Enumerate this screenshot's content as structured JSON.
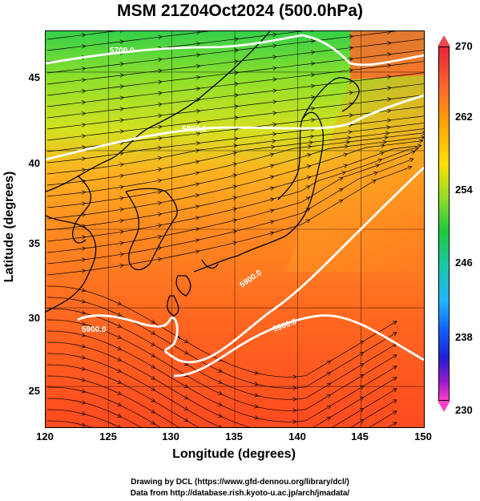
{
  "title": "MSM 21Z04Oct2024 (500.0hPa)",
  "axes": {
    "xlabel": "Longitude (degrees)",
    "ylabel": "Latitude  (degrees)",
    "xticks": [
      "120",
      "125",
      "130",
      "135",
      "140",
      "145",
      "150"
    ],
    "yticks": [
      "45",
      "40",
      "35",
      "30",
      "25"
    ]
  },
  "colorbar": {
    "ticks": [
      "270",
      "262",
      "254",
      "246",
      "238",
      "230"
    ],
    "colors": [
      "#e8253a",
      "#ffa500",
      "#ffe000",
      "#1ec83a",
      "#21b4ff",
      "#2020d0",
      "#ff40c8"
    ]
  },
  "contours": {
    "labels": [
      "5700.0",
      "5800.0",
      "5900.0",
      "5900.0",
      "5900.0"
    ]
  },
  "credits": {
    "line1": "Drawing by DCL (https://www.gfd-dennou.org/library/dcl/)",
    "line2": "Data from http://database.rish.kyoto-u.ac.jp/arch/jmadata/"
  },
  "chart_data": {
    "type": "heatmap",
    "title": "MSM 21Z04Oct2024 (500.0hPa)",
    "xlabel": "Longitude (degrees)",
    "ylabel": "Latitude  (degrees)",
    "xlim": [
      120,
      150
    ],
    "ylim": [
      22.4,
      47.6
    ],
    "colorbar_range": [
      230,
      270
    ],
    "contour_labels": [
      "5700.0",
      "5800.0",
      "5900.0"
    ],
    "grid": true
  }
}
